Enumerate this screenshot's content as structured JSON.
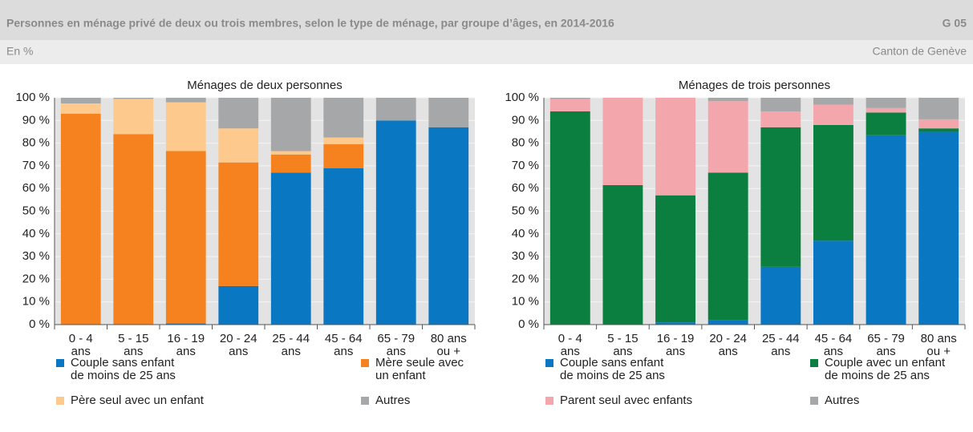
{
  "header": {
    "title": "Personnes en ménage privé de deux ou trois membres, selon le type de ménage, par groupe d’âges, en 2014-2016",
    "code": "G 05",
    "unit": "En %",
    "region": "Canton de Genève"
  },
  "chart_data": [
    {
      "type": "bar",
      "stacked": true,
      "title": "Ménages de deux personnes",
      "categories": [
        [
          "0 - 4",
          "ans"
        ],
        [
          "5 - 15",
          "ans"
        ],
        [
          "16 - 19",
          "ans"
        ],
        [
          "20 - 24",
          "ans"
        ],
        [
          "25 - 44",
          "ans"
        ],
        [
          "45 - 64",
          "ans"
        ],
        [
          "65 - 79",
          "ans"
        ],
        [
          "80 ans",
          "ou +"
        ]
      ],
      "ylim": [
        0,
        100
      ],
      "yticks": [
        {
          "value": 0,
          "label": "0 %"
        },
        {
          "value": 10,
          "label": "10 %"
        },
        {
          "value": 20,
          "label": "20 %"
        },
        {
          "value": 30,
          "label": "30 %"
        },
        {
          "value": 40,
          "label": "40 %"
        },
        {
          "value": 50,
          "label": "50 %"
        },
        {
          "value": 60,
          "label": "60 %"
        },
        {
          "value": 70,
          "label": "70 %"
        },
        {
          "value": 80,
          "label": "80 %"
        },
        {
          "value": 90,
          "label": "90 %"
        },
        {
          "value": 100,
          "label": "100 %"
        }
      ],
      "grid": true,
      "series": [
        {
          "name": [
            "Couple sans enfant",
            "de moins de 25 ans"
          ],
          "color": "#0a77c2",
          "values": [
            0,
            0,
            0.5,
            17,
            67,
            69,
            90,
            87
          ]
        },
        {
          "name": [
            "Mère seule avec",
            "un enfant"
          ],
          "color": "#f5821f",
          "values": [
            93,
            84,
            76,
            54.5,
            8,
            10.5,
            0,
            0
          ]
        },
        {
          "name": [
            "Père seul avec un enfant"
          ],
          "color": "#fdc98d",
          "values": [
            4.5,
            15.5,
            21.5,
            15,
            1.5,
            3,
            0,
            0
          ]
        },
        {
          "name": [
            "Autres"
          ],
          "color": "#a6a7a9",
          "values": [
            2.5,
            0.5,
            2,
            13.5,
            23.5,
            17.5,
            10,
            13
          ]
        }
      ]
    },
    {
      "type": "bar",
      "stacked": true,
      "title": "Ménages de trois personnes",
      "categories": [
        [
          "0 - 4",
          "ans"
        ],
        [
          "5 - 15",
          "ans"
        ],
        [
          "16 - 19",
          "ans"
        ],
        [
          "20 - 24",
          "ans"
        ],
        [
          "25 - 44",
          "ans"
        ],
        [
          "45 - 64",
          "ans"
        ],
        [
          "65 - 79",
          "ans"
        ],
        [
          "80 ans",
          "ou +"
        ]
      ],
      "ylim": [
        0,
        100
      ],
      "yticks": [
        {
          "value": 0,
          "label": "0 %"
        },
        {
          "value": 10,
          "label": "10 %"
        },
        {
          "value": 20,
          "label": "20 %"
        },
        {
          "value": 30,
          "label": "30 %"
        },
        {
          "value": 40,
          "label": "40 %"
        },
        {
          "value": 50,
          "label": "50 %"
        },
        {
          "value": 60,
          "label": "60 %"
        },
        {
          "value": 70,
          "label": "70 %"
        },
        {
          "value": 80,
          "label": "80 %"
        },
        {
          "value": 90,
          "label": "90 %"
        },
        {
          "value": 100,
          "label": "100 %"
        }
      ],
      "grid": true,
      "series": [
        {
          "name": [
            "Couple sans enfant",
            "de moins de 25 ans"
          ],
          "color": "#0a77c2",
          "values": [
            0,
            0,
            1,
            2,
            25.5,
            37,
            83.5,
            85
          ]
        },
        {
          "name": [
            "Couple avec un enfant",
            "de moins de 25 ans"
          ],
          "color": "#0a7f3f",
          "values": [
            94,
            61.5,
            56,
            65,
            61.5,
            51,
            10,
            1.5
          ]
        },
        {
          "name": [
            "Parent seul avec enfants"
          ],
          "color": "#f4a6ad",
          "values": [
            5.5,
            38.5,
            43,
            31.5,
            7,
            9,
            2,
            4
          ]
        },
        {
          "name": [
            "Autres"
          ],
          "color": "#a6a7a9",
          "values": [
            0.5,
            0,
            0,
            1.5,
            6,
            3,
            4.5,
            9.5
          ]
        }
      ]
    }
  ]
}
